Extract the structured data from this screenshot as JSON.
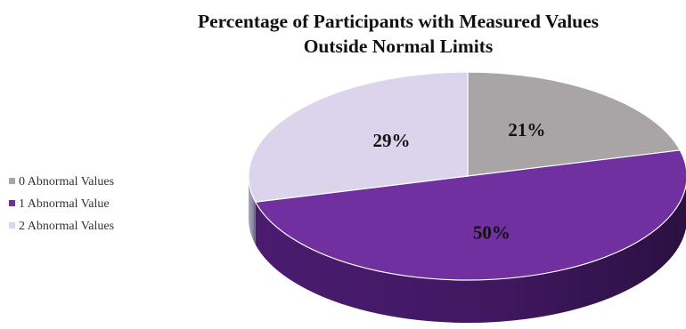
{
  "chart_data": {
    "type": "pie",
    "title": [
      "Percentage of Participants with Measured Values",
      "Outside Normal Limits"
    ],
    "style": "3d",
    "legend_position": "left",
    "slices": [
      {
        "label": "0 Abnormal Values",
        "value": 21,
        "data_label": "21%",
        "color": "#a9a4a6",
        "side_color": "#86808a"
      },
      {
        "label": "1 Abnormal Value",
        "value": 50,
        "data_label": "50%",
        "color": "#7030a0",
        "side_color": "#4e1d76"
      },
      {
        "label": "2 Abnormal Values",
        "value": 29,
        "data_label": "29%",
        "color": "#dcd3ec",
        "side_color": "#b7aad0"
      }
    ]
  }
}
